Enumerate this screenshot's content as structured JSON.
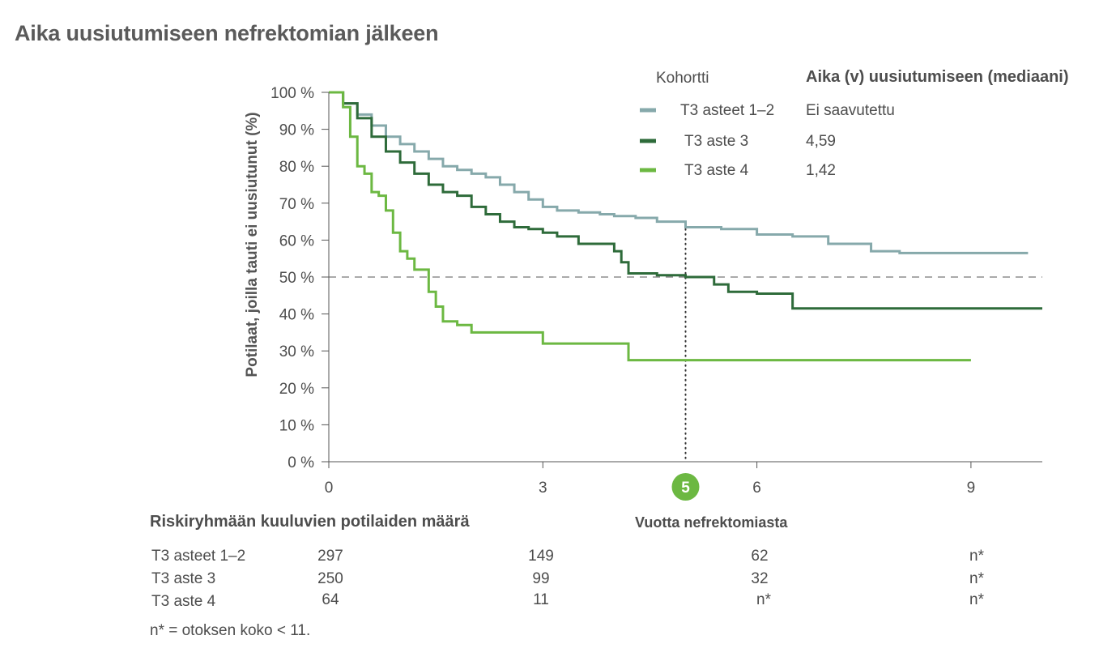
{
  "title": "Aika uusiutumiseen nefrektomian jälkeen",
  "legend": {
    "heading_cohort": "Kohortti",
    "heading_median": "Aika (v) uusiutumiseen (mediaani)",
    "items": [
      {
        "name": "T3 asteet 1–2",
        "median": "Ei saavutettu",
        "color": "#86a9ab"
      },
      {
        "name": "T3 aste 3",
        "median": "4,59",
        "color": "#2e6b3a"
      },
      {
        "name": "T3 aste 4",
        "median": "1,42",
        "color": "#6cb842"
      }
    ]
  },
  "risk_table": {
    "heading": "Riskiryhmään kuuluvien potilaiden määrä",
    "rows": [
      {
        "label": "T3 asteet 1–2",
        "values": [
          "297",
          "149",
          "62",
          "n*"
        ]
      },
      {
        "label": "T3 aste 3",
        "values": [
          "250",
          "99",
          "32",
          "n*"
        ]
      },
      {
        "label": "T3 aste 4",
        "values": [
          "64",
          "11",
          "n*",
          "n*"
        ]
      }
    ]
  },
  "footnote": "n* = otoksen koko < 11.",
  "chart_data": {
    "type": "line",
    "step": true,
    "xlabel": "Vuotta nefrektomiasta",
    "ylabel": "Potilaat, joilla tauti ei uusiutunut (%)",
    "xlim": [
      0,
      10
    ],
    "ylim": [
      0,
      100
    ],
    "xticks": [
      0,
      3,
      6,
      9
    ],
    "yticks": [
      0,
      10,
      20,
      30,
      40,
      50,
      60,
      70,
      80,
      90,
      100
    ],
    "ytick_labels": [
      "0 %",
      "10 %",
      "20 %",
      "30 %",
      "40 %",
      "50 %",
      "60 %",
      "70 %",
      "80 %",
      "90 %",
      "100 %"
    ],
    "reference_line_y": 50,
    "highlight_x": 5,
    "highlight_label": "5",
    "highlight_color": "#6cb842",
    "series": [
      {
        "name": "T3 asteet 1–2",
        "color": "#86a9ab",
        "x": [
          0,
          0.2,
          0.4,
          0.6,
          0.8,
          1.0,
          1.2,
          1.4,
          1.6,
          1.8,
          2.0,
          2.2,
          2.4,
          2.6,
          2.8,
          3.0,
          3.2,
          3.5,
          3.8,
          4.0,
          4.3,
          4.6,
          5.0,
          5.5,
          6.0,
          6.5,
          7.0,
          7.6,
          8.0,
          8.5,
          9.0,
          9.8
        ],
        "y": [
          100,
          97,
          94,
          91,
          88,
          86,
          84,
          82,
          80,
          79,
          78,
          77,
          75,
          73,
          71,
          69,
          68,
          67.5,
          67,
          66.5,
          66,
          65,
          63.5,
          63,
          61.5,
          61,
          59,
          57,
          56.5,
          56.5,
          56.5,
          56.5
        ]
      },
      {
        "name": "T3 aste 3",
        "color": "#2e6b3a",
        "x": [
          0,
          0.2,
          0.4,
          0.6,
          0.8,
          1.0,
          1.2,
          1.4,
          1.6,
          1.8,
          2.0,
          2.2,
          2.4,
          2.6,
          2.8,
          3.0,
          3.2,
          3.5,
          3.8,
          4.0,
          4.1,
          4.2,
          4.4,
          4.6,
          5.0,
          5.4,
          5.6,
          6.0,
          6.5,
          7.0,
          8.0,
          9.0,
          10.0
        ],
        "y": [
          100,
          97,
          93,
          88,
          84,
          81,
          78,
          75,
          73,
          72,
          69,
          67,
          65,
          63.5,
          63,
          62,
          61,
          59,
          59,
          57,
          54,
          51,
          51,
          50.5,
          50,
          48,
          46,
          45.5,
          41.5,
          41.5,
          41.5,
          41.5,
          41.5
        ]
      },
      {
        "name": "T3 aste 4",
        "color": "#6cb842",
        "x": [
          0,
          0.2,
          0.3,
          0.4,
          0.5,
          0.6,
          0.7,
          0.8,
          0.9,
          1.0,
          1.1,
          1.2,
          1.3,
          1.4,
          1.5,
          1.6,
          1.8,
          2.0,
          3.0,
          4.0,
          4.2,
          5.0,
          6.0,
          9.0
        ],
        "y": [
          100,
          96,
          88,
          80,
          78,
          73,
          72,
          68,
          62,
          57,
          55,
          52,
          52,
          46,
          42,
          38,
          37,
          35,
          32,
          32,
          27.5,
          27.5,
          27.5,
          27.5
        ]
      }
    ]
  }
}
